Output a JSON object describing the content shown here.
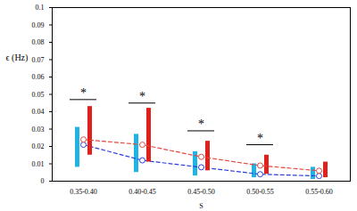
{
  "chart_data": {
    "type": "line",
    "x_label": "S",
    "y_label": "ϵ (Hz)",
    "categories": [
      "0.35-0.40",
      "0.40-0.45",
      "0.45-0.50",
      "0.50-0.55",
      "0.55-0.60"
    ],
    "ylim": [
      0,
      0.1
    ],
    "yticks": [
      0,
      0.01,
      0.02,
      0.03,
      0.04,
      0.05,
      0.06,
      0.07,
      0.08,
      0.09,
      0.1
    ],
    "series": [
      {
        "color": "#2b3fd8",
        "marker": "circle",
        "line_style": "dashed",
        "values": [
          0.021,
          0.012,
          0.008,
          0.004,
          0.003
        ],
        "error_bars": {
          "color": "#1fb4e4",
          "low": [
            0.008,
            0.005,
            0.003,
            0.002,
            0.001
          ],
          "high": [
            0.031,
            0.027,
            0.017,
            0.01,
            0.008
          ]
        }
      },
      {
        "color": "#e5473b",
        "marker": "circle",
        "line_style": "dashed",
        "values": [
          0.024,
          0.021,
          0.014,
          0.009,
          0.006
        ],
        "error_bars": {
          "color": "#e0201a",
          "low": [
            0.015,
            0.011,
            0.006,
            0.004,
            0.002
          ],
          "high": [
            0.043,
            0.042,
            0.023,
            0.015,
            0.011
          ]
        }
      }
    ],
    "annotations": [
      {
        "text": "*",
        "category": "0.35-0.40",
        "y": 0.047
      },
      {
        "text": "*",
        "category": "0.40-0.45",
        "y": 0.045
      },
      {
        "text": "*",
        "category": "0.45-0.50",
        "y": 0.029
      },
      {
        "text": "*",
        "category": "0.50-0.55",
        "y": 0.021
      }
    ]
  }
}
